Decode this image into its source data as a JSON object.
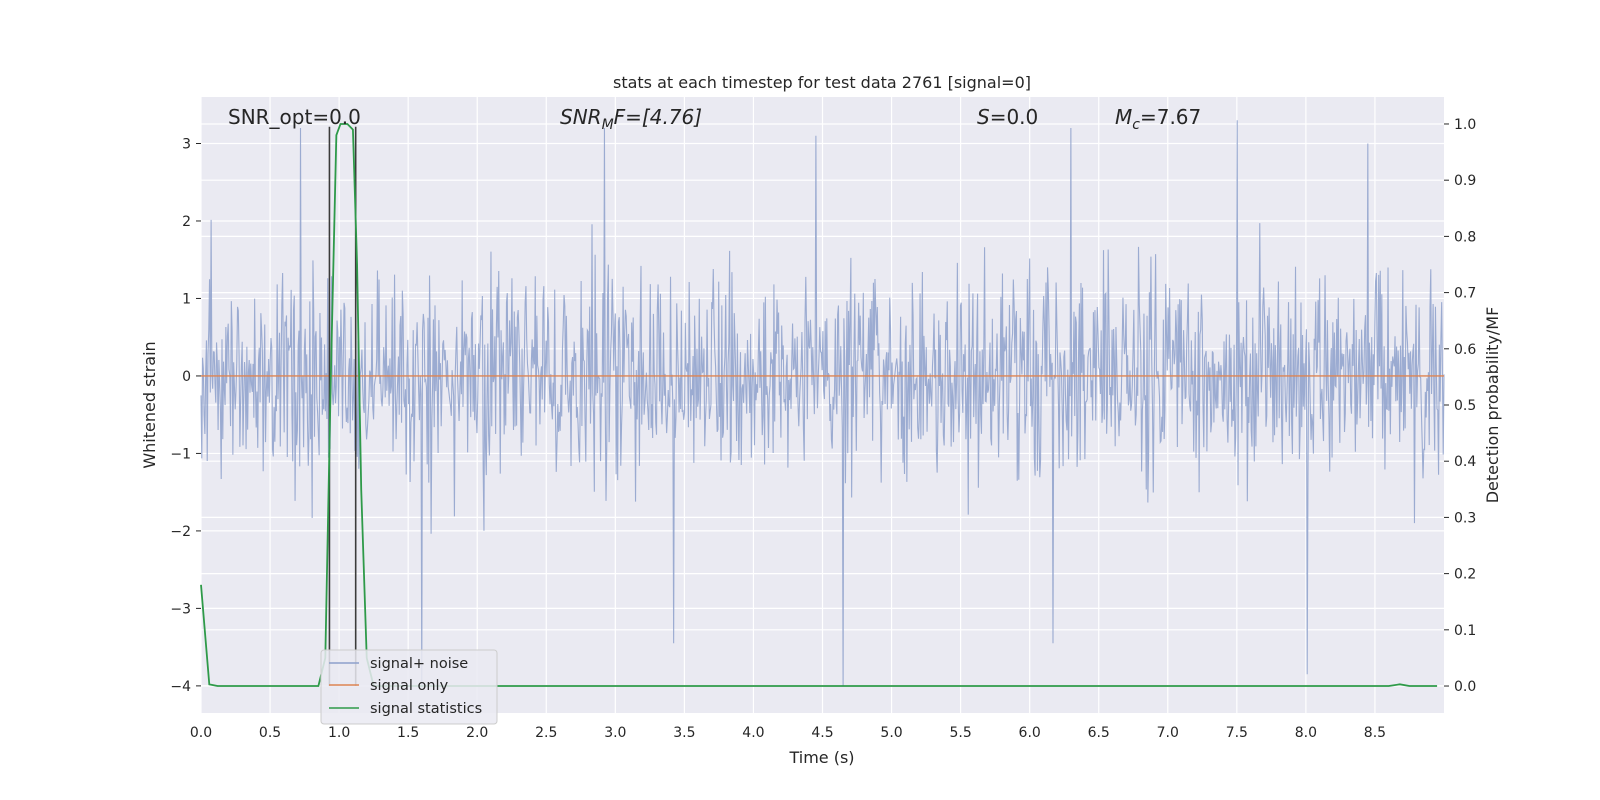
{
  "chart_data": {
    "type": "line",
    "title": "stats at each timestep for test data 2761 [signal=0]",
    "xlabel": "Time (s)",
    "ylabel_left": "Whitened strain",
    "ylabel_right": "Detection probability/MF",
    "xlim": [
      0.0,
      9.0
    ],
    "ylim_left": [
      -4.35,
      3.6
    ],
    "ylim_right": [
      -0.048,
      1.048
    ],
    "x_ticks": [
      "0.0",
      "0.5",
      "1.0",
      "1.5",
      "2.0",
      "2.5",
      "3.0",
      "3.5",
      "4.0",
      "4.5",
      "5.0",
      "5.5",
      "6.0",
      "6.5",
      "7.0",
      "7.5",
      "8.0",
      "8.5"
    ],
    "y_ticks_left": [
      "−4",
      "−3",
      "−2",
      "−1",
      "0",
      "1",
      "2",
      "3"
    ],
    "y_ticks_right": [
      "0.0",
      "0.1",
      "0.2",
      "0.3",
      "0.4",
      "0.5",
      "0.6",
      "0.7",
      "0.8",
      "0.9",
      "1.0"
    ],
    "grid": true,
    "legend_position": "bottom-left",
    "annotations": {
      "snr_opt": "SNR_opt=0.0",
      "snr_mf_main": "SNR",
      "snr_mf_sub": "M",
      "snr_mf_rest": "F=[4.76]",
      "s_main": "S",
      "s_rest": "=0.0",
      "mc_main": "M",
      "mc_sub": "c",
      "mc_rest": "=7.67"
    },
    "vertical_markers_x": [
      0.93,
      1.12
    ],
    "colors": {
      "noise": "#8da0cb",
      "signal": "#dd8452",
      "statistics": "#2e9a49",
      "background": "#eaeaf2",
      "grid": "#ffffff",
      "marker": "#3b3b3b"
    },
    "series": [
      {
        "name": "signal+ noise",
        "axis": "left",
        "description_range": [
          -4.0,
          3.3
        ],
        "typical_envelope": [
          -1.6,
          1.6
        ],
        "seed": 2761,
        "n_points": 1600
      },
      {
        "name": "signal only",
        "axis": "left",
        "x": [
          0.0,
          9.0
        ],
        "y": [
          0.0,
          0.0
        ]
      },
      {
        "name": "signal statistics",
        "axis": "right",
        "x": [
          0.0,
          0.06,
          0.12,
          0.2,
          0.3,
          0.5,
          0.7,
          0.85,
          0.9,
          0.94,
          0.98,
          1.01,
          1.06,
          1.1,
          1.13,
          1.16,
          1.2,
          1.25,
          1.3,
          1.5,
          2.0,
          4.0,
          6.0,
          8.0,
          8.6,
          8.68,
          8.75,
          8.95
        ],
        "y": [
          0.18,
          0.003,
          0.0,
          0.0,
          0.0,
          0.0,
          0.0,
          0.0,
          0.05,
          0.55,
          0.98,
          1.0,
          1.0,
          0.99,
          0.75,
          0.35,
          0.05,
          0.0,
          0.0,
          0.0,
          0.0,
          0.0,
          0.0,
          0.0,
          0.0,
          0.003,
          0.0,
          0.0
        ]
      }
    ],
    "spikes": [
      {
        "x": 1.6,
        "y": -4.0
      },
      {
        "x": 3.42,
        "y": -3.45
      },
      {
        "x": 4.65,
        "y": -4.0
      },
      {
        "x": 6.17,
        "y": -3.45
      },
      {
        "x": 8.01,
        "y": -3.85
      },
      {
        "x": 0.72,
        "y": 3.2
      },
      {
        "x": 7.5,
        "y": 3.3
      },
      {
        "x": 6.3,
        "y": 3.2
      },
      {
        "x": 2.92,
        "y": 3.2
      },
      {
        "x": 4.45,
        "y": 3.1
      },
      {
        "x": 8.45,
        "y": 3.0
      }
    ]
  },
  "legend": {
    "items": [
      {
        "label": "signal+ noise"
      },
      {
        "label": "signal only"
      },
      {
        "label": "signal statistics"
      }
    ]
  }
}
